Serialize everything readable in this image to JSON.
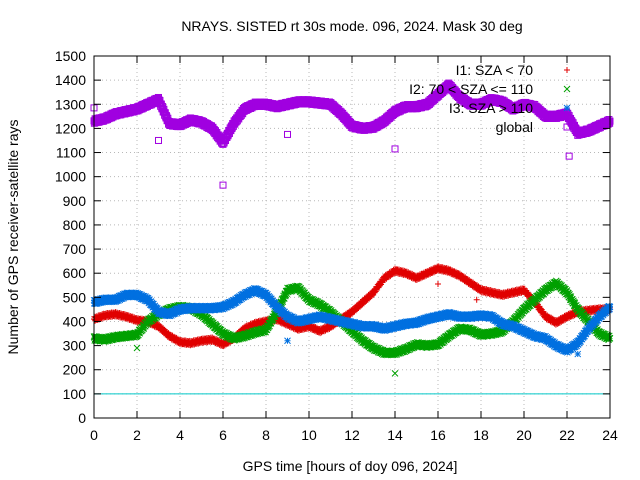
{
  "chart_data": {
    "type": "scatter",
    "title": "NRAYS. SISTED rt 30s mode. 096, 2024. Mask 30 deg",
    "xlabel": "GPS time [hours of doy 096, 2024]",
    "ylabel": "Number of GPS receiver-satellite rays",
    "xlim": [
      0,
      24
    ],
    "ylim": [
      0,
      1500
    ],
    "xticks": [
      0,
      2,
      4,
      6,
      8,
      10,
      12,
      14,
      16,
      18,
      20,
      22,
      24
    ],
    "yticks": [
      0,
      100,
      200,
      300,
      400,
      500,
      600,
      700,
      800,
      900,
      1000,
      1100,
      1200,
      1300,
      1400,
      1500
    ],
    "grid": true,
    "legend_position": "top-right",
    "threshold": {
      "value": 100,
      "color": "#00c8c8"
    },
    "series": [
      {
        "name": "I1: SZA < 70",
        "marker": "+",
        "color": "#e00000",
        "x": [
          0,
          0.5,
          1,
          1.5,
          2,
          2.5,
          3,
          3.5,
          4,
          4.5,
          5,
          5.5,
          6,
          6.5,
          7,
          7.5,
          8,
          8.5,
          9,
          9.5,
          10,
          10.5,
          11,
          11.5,
          12,
          12.5,
          13,
          13.5,
          14,
          14.5,
          15,
          15.5,
          16,
          16.5,
          17,
          17.5,
          18,
          18.5,
          19,
          19.5,
          20,
          20.5,
          21,
          21.5,
          22,
          22.5,
          23,
          23.5,
          24
        ],
        "y": [
          410,
          425,
          430,
          420,
          405,
          400,
          380,
          340,
          315,
          310,
          320,
          325,
          305,
          330,
          370,
          390,
          400,
          410,
          390,
          370,
          380,
          360,
          380,
          410,
          440,
          480,
          520,
          580,
          610,
          600,
          580,
          600,
          620,
          610,
          590,
          560,
          530,
          520,
          510,
          520,
          530,
          480,
          420,
          395,
          420,
          440,
          445,
          450,
          450
        ]
      },
      {
        "name": "I2: 70 < SZA <= 110",
        "marker": "x",
        "color": "#00a000",
        "x": [
          0,
          0.5,
          1,
          1.5,
          2,
          2.5,
          3,
          3.5,
          4,
          4.5,
          5,
          5.5,
          6,
          6.5,
          7,
          7.5,
          8,
          8.5,
          9,
          9.5,
          10,
          10.5,
          11,
          11.5,
          12,
          12.5,
          13,
          13.5,
          14,
          14.5,
          15,
          15.5,
          16,
          16.5,
          17,
          17.5,
          18,
          18.5,
          19,
          19.5,
          20,
          20.5,
          21,
          21.5,
          22,
          22.5,
          23,
          23.5,
          24
        ],
        "y": [
          330,
          325,
          335,
          340,
          345,
          400,
          430,
          450,
          460,
          455,
          430,
          390,
          350,
          330,
          340,
          355,
          365,
          440,
          530,
          540,
          490,
          470,
          440,
          400,
          360,
          320,
          290,
          270,
          270,
          285,
          305,
          300,
          305,
          340,
          370,
          365,
          345,
          350,
          360,
          400,
          450,
          490,
          530,
          560,
          520,
          450,
          400,
          350,
          330
        ]
      },
      {
        "name": "I3: SZA > 110",
        "marker": "*",
        "color": "#0070e0",
        "x": [
          0,
          0.5,
          1,
          1.5,
          2,
          2.5,
          3,
          3.5,
          4,
          4.5,
          5,
          5.5,
          6,
          6.5,
          7,
          7.5,
          8,
          8.5,
          9,
          9.5,
          10,
          10.5,
          11,
          11.5,
          12,
          12.5,
          13,
          13.5,
          14,
          14.5,
          15,
          15.5,
          16,
          16.5,
          17,
          17.5,
          18,
          18.5,
          19,
          19.5,
          20,
          20.5,
          21,
          21.5,
          22,
          22.5,
          23,
          23.5,
          24
        ],
        "y": [
          480,
          490,
          490,
          510,
          510,
          490,
          440,
          430,
          450,
          455,
          455,
          455,
          460,
          480,
          510,
          530,
          510,
          460,
          420,
          400,
          410,
          420,
          410,
          400,
          390,
          380,
          380,
          370,
          380,
          390,
          395,
          410,
          420,
          430,
          420,
          420,
          425,
          420,
          390,
          380,
          360,
          340,
          330,
          300,
          280,
          310,
          370,
          420,
          460
        ]
      },
      {
        "name": "global",
        "marker": "square",
        "color": "#a000e0",
        "x": [
          0,
          0.5,
          1,
          1.5,
          2,
          2.5,
          3,
          3.5,
          4,
          4.5,
          5,
          5.5,
          6,
          6.5,
          7,
          7.5,
          8,
          8.5,
          9,
          9.5,
          10,
          10.5,
          11,
          11.5,
          12,
          12.5,
          13,
          13.5,
          14,
          14.5,
          15,
          15.5,
          16,
          16.5,
          17,
          17.5,
          18,
          18.5,
          19,
          19.5,
          20,
          20.5,
          21,
          21.5,
          22,
          22.5,
          23,
          23.5,
          24
        ],
        "y": [
          1230,
          1240,
          1260,
          1270,
          1280,
          1300,
          1320,
          1220,
          1215,
          1235,
          1225,
          1200,
          1140,
          1220,
          1280,
          1300,
          1300,
          1290,
          1300,
          1310,
          1310,
          1305,
          1300,
          1260,
          1210,
          1200,
          1205,
          1230,
          1270,
          1290,
          1290,
          1300,
          1340,
          1380,
          1330,
          1300,
          1300,
          1320,
          1310,
          1280,
          1300,
          1290,
          1250,
          1250,
          1260,
          1180,
          1190,
          1210,
          1230
        ]
      }
    ],
    "outliers": [
      {
        "series": "global",
        "x": 6,
        "y": 965
      },
      {
        "series": "global",
        "x": 3,
        "y": 1150
      },
      {
        "series": "global",
        "x": 9,
        "y": 1175
      },
      {
        "series": "global",
        "x": 14,
        "y": 1115
      },
      {
        "series": "global",
        "x": 22.1,
        "y": 1085
      },
      {
        "series": "global",
        "x": 0,
        "y": 1285
      },
      {
        "series": "I2: 70 < SZA <= 110",
        "x": 14,
        "y": 185
      },
      {
        "series": "I2: 70 < SZA <= 110",
        "x": 2,
        "y": 290
      },
      {
        "series": "I1: SZA < 70",
        "x": 16,
        "y": 555
      },
      {
        "series": "I1: SZA < 70",
        "x": 17.8,
        "y": 490
      },
      {
        "series": "I3: SZA > 110",
        "x": 9,
        "y": 320
      },
      {
        "series": "I3: SZA > 110",
        "x": 22.5,
        "y": 265
      }
    ]
  }
}
